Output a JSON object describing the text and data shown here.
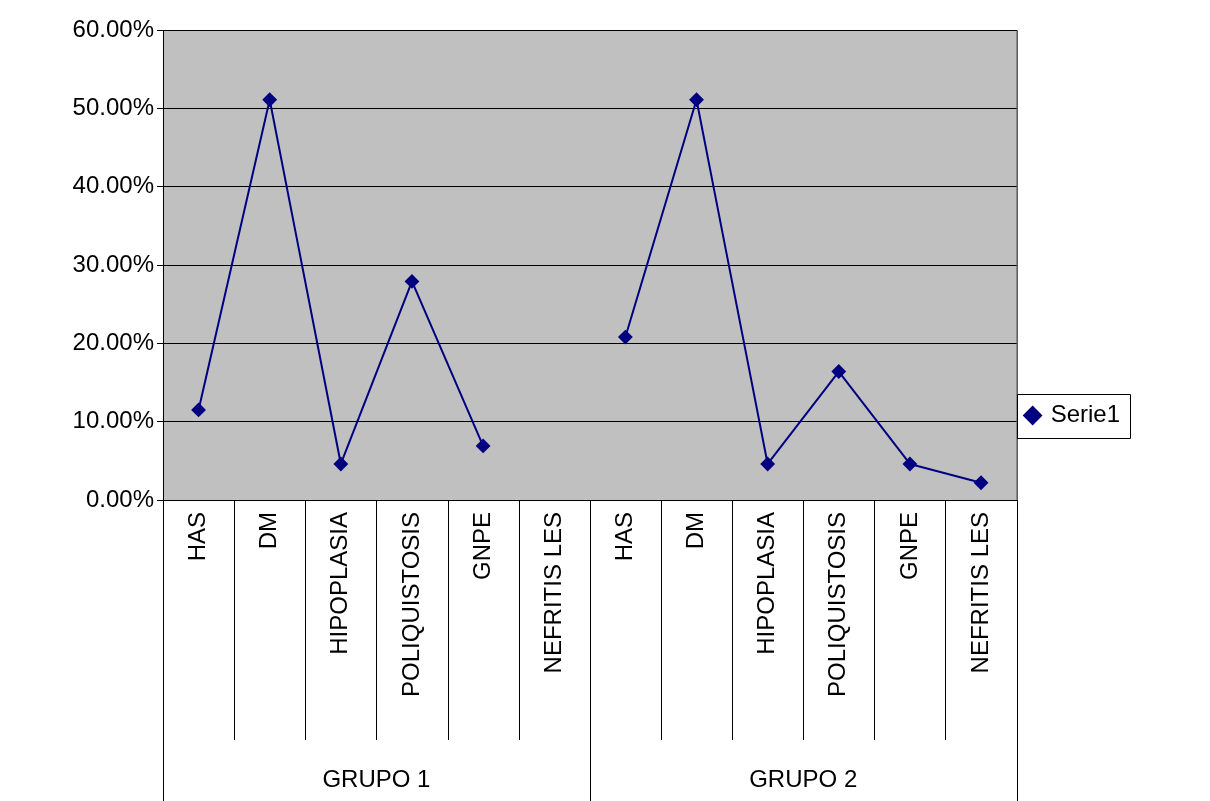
{
  "chart_data": {
    "type": "line",
    "categories": [
      "HAS",
      "DM",
      "HIPOPLASIA",
      "POLIQUISTOSIS",
      "GNPE",
      "NEFRITIS LES",
      "HAS",
      "DM",
      "HIPOPLASIA",
      "POLIQUISTOSIS",
      "GNPE",
      "NEFRITIS LES"
    ],
    "series": [
      {
        "name": "Serie1",
        "color": "#000080",
        "values": [
          11.5,
          51.1,
          4.6,
          27.9,
          6.9,
          null,
          20.8,
          51.1,
          4.6,
          16.4,
          4.6,
          2.2
        ]
      }
    ],
    "ylim": [
      0,
      60
    ],
    "yticks": [
      {
        "value": 0,
        "label": "0.00%"
      },
      {
        "value": 10,
        "label": "10.00%"
      },
      {
        "value": 20,
        "label": "20.00%"
      },
      {
        "value": 30,
        "label": "30.00%"
      },
      {
        "value": 40,
        "label": "40.00%"
      },
      {
        "value": 50,
        "label": "50.00%"
      },
      {
        "value": 60,
        "label": "60.00%"
      }
    ],
    "annotations": [
      "GRUPO 1",
      "GRUPO 2"
    ],
    "grid": "y",
    "legend": "right",
    "marker": "diamond",
    "line_style": "solid"
  }
}
